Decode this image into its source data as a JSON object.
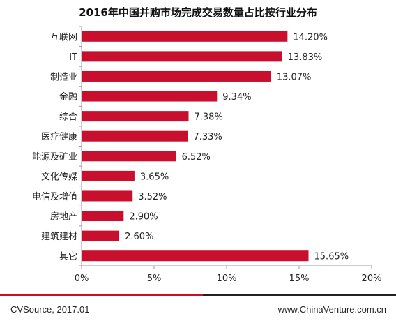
{
  "chart_data": {
    "type": "bar",
    "orientation": "horizontal",
    "title": "2016年中国并购市场完成交易数量占比按行业分布",
    "categories": [
      "互联网",
      "IT",
      "制造业",
      "金融",
      "综合",
      "医疗健康",
      "能源及矿业",
      "文化传媒",
      "电信及增值",
      "房地产",
      "建筑建材",
      "其它"
    ],
    "values": [
      14.2,
      13.83,
      13.07,
      9.34,
      7.38,
      7.33,
      6.52,
      3.65,
      3.52,
      2.9,
      2.6,
      15.65
    ],
    "value_labels": [
      "14.20%",
      "13.83%",
      "13.07%",
      "9.34%",
      "7.38%",
      "7.33%",
      "6.52%",
      "3.65%",
      "3.52%",
      "2.90%",
      "2.60%",
      "15.65%"
    ],
    "xlim": [
      0,
      20
    ],
    "x_ticks": [
      "0%",
      "5%",
      "10%",
      "15%",
      "20%"
    ],
    "xlabel": "",
    "ylabel": "",
    "grid": false,
    "legend": "none",
    "bar_color": "#c8102e",
    "axis_color": "#999999"
  },
  "footer": {
    "source": "CVSource, 2017.01",
    "website": "www.ChinaVenture.com.cn",
    "rule_colors": [
      "#c8102e",
      "#222222"
    ]
  }
}
